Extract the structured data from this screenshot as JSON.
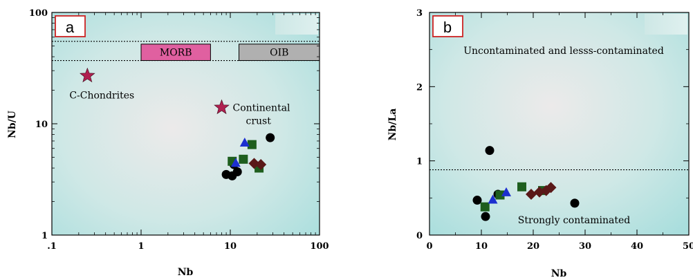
{
  "chart_data": [
    {
      "panel_label": "a",
      "type": "scatter",
      "xlabel": "Nb",
      "ylabel": "Nb/U",
      "xscale": "log",
      "yscale": "log",
      "xlim": [
        0.1,
        100
      ],
      "ylim": [
        1,
        100
      ],
      "xticks": [
        ".1",
        "1",
        "10",
        "100"
      ],
      "yticks": [
        "1",
        "10",
        "100"
      ],
      "grid": false,
      "band_lines_y": [
        55,
        37
      ],
      "ranges": [
        {
          "label": "MORB",
          "x_from": 1,
          "x_to": 6,
          "color": "#e060a0"
        },
        {
          "label": "OIB",
          "x_from": 12.5,
          "x_to": 100,
          "color": "#b0b0b0"
        }
      ],
      "reference_points": [
        {
          "label": "C-Chondrites",
          "x": 0.25,
          "y": 27,
          "color": "#b02050"
        },
        {
          "label_lines": [
            "Continental",
            "crust"
          ],
          "x": 8,
          "y": 14,
          "color": "#b02050"
        }
      ],
      "series": [
        {
          "marker": "circle",
          "color": "#000000",
          "points": [
            [
              9,
              3.5
            ],
            [
              10.5,
              3.4
            ],
            [
              12,
              3.7
            ],
            [
              28,
              7.5
            ],
            [
              11,
              4.3
            ]
          ]
        },
        {
          "marker": "square",
          "color": "#1e5e1e",
          "points": [
            [
              10.5,
              4.6
            ],
            [
              14,
              4.8
            ],
            [
              17.5,
              6.5
            ],
            [
              21,
              4.0
            ]
          ]
        },
        {
          "marker": "triangle",
          "color": "#1c2fd0",
          "points": [
            [
              11.5,
              4.4
            ],
            [
              14.5,
              6.7
            ]
          ]
        },
        {
          "marker": "diamond",
          "color": "#5a1818",
          "points": [
            [
              18.5,
              4.4
            ],
            [
              22,
              4.3
            ]
          ]
        }
      ]
    },
    {
      "panel_label": "b",
      "type": "scatter",
      "xlabel": "Nb",
      "ylabel": "Nb/La",
      "xlim": [
        0,
        50
      ],
      "ylim": [
        0,
        3
      ],
      "xticks": [
        "0",
        "10",
        "20",
        "30",
        "40",
        "50"
      ],
      "yticks": [
        "0",
        "1",
        "2",
        "3"
      ],
      "grid": false,
      "threshold_y": 0.88,
      "annotations": [
        "Uncontaminated and lesss-contaminated",
        "Strongly contaminated"
      ],
      "series": [
        {
          "marker": "circle",
          "color": "#000000",
          "points": [
            [
              9.2,
              0.47
            ],
            [
              10.8,
              0.25
            ],
            [
              11.6,
              1.14
            ],
            [
              13.2,
              0.55
            ],
            [
              28,
              0.43
            ]
          ]
        },
        {
          "marker": "square",
          "color": "#1e5e1e",
          "points": [
            [
              10.7,
              0.38
            ],
            [
              13.6,
              0.54
            ],
            [
              17.8,
              0.65
            ],
            [
              21.8,
              0.6
            ]
          ]
        },
        {
          "marker": "triangle",
          "color": "#1c2fd0",
          "points": [
            [
              12.2,
              0.47
            ],
            [
              14.8,
              0.57
            ]
          ]
        },
        {
          "marker": "diamond",
          "color": "#5a1818",
          "points": [
            [
              19.6,
              0.55
            ],
            [
              21.2,
              0.58
            ],
            [
              22.5,
              0.6
            ],
            [
              23.4,
              0.64
            ]
          ]
        }
      ]
    }
  ]
}
